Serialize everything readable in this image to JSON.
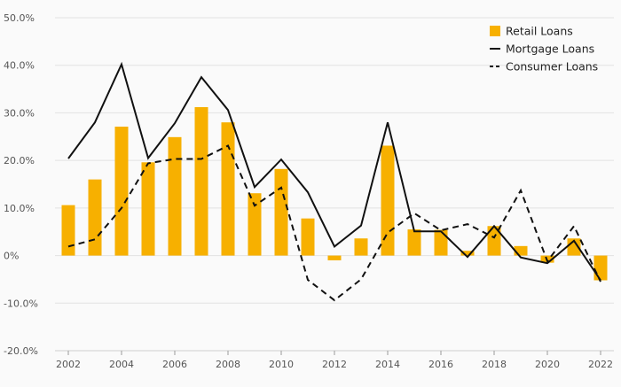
{
  "chart_data": {
    "type": "bar",
    "x": [
      2002,
      2003,
      2004,
      2005,
      2006,
      2007,
      2008,
      2009,
      2010,
      2011,
      2012,
      2013,
      2014,
      2015,
      2016,
      2017,
      2018,
      2019,
      2020,
      2021,
      2022
    ],
    "x_tick_labels": [
      "2002",
      "2004",
      "2006",
      "2008",
      "2010",
      "2012",
      "2014",
      "2016",
      "2018",
      "2020",
      "2022"
    ],
    "y_tick_labels": [
      "50.0%",
      "40.0%",
      "30.0%",
      "20.0%",
      "10.0%",
      "0%",
      "-10.0%",
      "-20.0%"
    ],
    "ylim": [
      -20,
      50
    ],
    "y_ticks": [
      50,
      40,
      30,
      20,
      10,
      0,
      -10,
      -20
    ],
    "grid": true,
    "legend_position": "top-right",
    "series": [
      {
        "name": "Retail Loans",
        "kind": "bar",
        "color": "#f7b000",
        "values": [
          10.6,
          16.0,
          27.1,
          19.6,
          24.9,
          31.2,
          28.0,
          13.1,
          18.2,
          7.8,
          -1.0,
          3.6,
          23.1,
          5.5,
          5.4,
          1.0,
          6.2,
          2.0,
          -1.5,
          3.6,
          -5.2
        ]
      },
      {
        "name": "Mortgage Loans",
        "kind": "line",
        "dash": "solid",
        "color": "#111111",
        "values": [
          20.4,
          28.0,
          40.2,
          20.5,
          27.8,
          37.5,
          30.6,
          14.4,
          20.2,
          13.3,
          1.9,
          6.3,
          28.0,
          5.1,
          5.1,
          -0.3,
          6.2,
          -0.4,
          -1.6,
          3.1,
          -5.2
        ]
      },
      {
        "name": "Consumer Loans",
        "kind": "line",
        "dash": "dashed",
        "color": "#111111",
        "values": [
          1.9,
          3.4,
          10.0,
          19.4,
          20.3,
          20.3,
          23.1,
          10.5,
          14.3,
          -5.1,
          -9.4,
          -5.0,
          4.8,
          8.9,
          5.3,
          6.6,
          3.8,
          13.7,
          -1.2,
          6.2,
          -5.5
        ]
      }
    ]
  }
}
